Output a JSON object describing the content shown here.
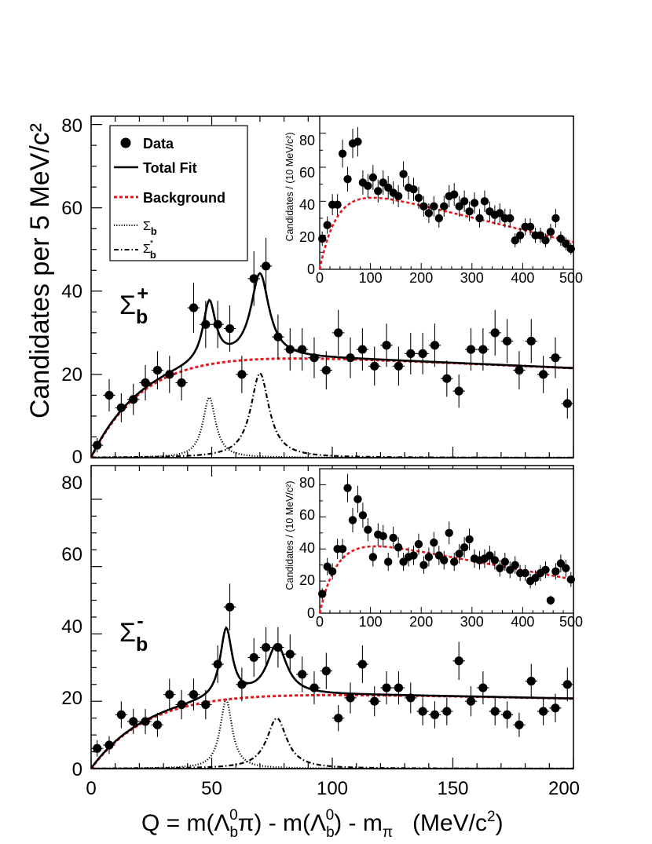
{
  "figure": {
    "ylabel": "Candidates per 5 MeV/c²",
    "xlabel": {
      "q": "Q = m(Λ",
      "b": "b",
      "zero": "0",
      "pi_close": "π) - m(Λ",
      "close": ") - m",
      "pi_sub": "π",
      "units": "   (MeV/c",
      "two": "2",
      "end": ")"
    },
    "xticks": [
      "0",
      "50",
      "100",
      "150",
      "200"
    ],
    "xlim": [
      0,
      200
    ]
  },
  "legend": {
    "data": "Data",
    "total_fit": "Total Fit",
    "background": "Background",
    "sigma": "Σ",
    "sub_b": "b",
    "star": "*"
  },
  "colors": {
    "background_curve": "#e8161b",
    "data": "#000000",
    "axis": "#000000"
  },
  "chart_data": [
    {
      "type": "scatter",
      "panel": "Sigma_b plus",
      "label": {
        "sigma": "Σ",
        "sub": "b",
        "sup": "+"
      },
      "yticks": [
        "0",
        "20",
        "40",
        "60",
        "80"
      ],
      "xlim": [
        0,
        200
      ],
      "ylim": [
        0,
        82
      ],
      "bin_width": 5,
      "series": [
        {
          "name": "Data",
          "style": "points",
          "x": [
            2.5,
            7.5,
            12.5,
            17.5,
            22.5,
            27.5,
            32.5,
            37.5,
            42.5,
            47.5,
            52.5,
            57.5,
            62.5,
            67.5,
            72.5,
            77.5,
            82.5,
            87.5,
            92.5,
            97.5,
            102.5,
            107.5,
            112.5,
            117.5,
            122.5,
            127.5,
            132.5,
            137.5,
            142.5,
            147.5,
            152.5,
            157.5,
            162.5,
            167.5,
            172.5,
            177.5,
            182.5,
            187.5,
            192.5,
            197.5
          ],
          "y": [
            3,
            15,
            12,
            14,
            18,
            21,
            20,
            18,
            36,
            32,
            32,
            31,
            20,
            43,
            46,
            29,
            26,
            26,
            24,
            21,
            30,
            24,
            26,
            22,
            27,
            22,
            25,
            25,
            27,
            19,
            16,
            26,
            26,
            30,
            28,
            21,
            28,
            20,
            24,
            13
          ]
        },
        {
          "name": "Total Fit",
          "style": "solid"
        },
        {
          "name": "Background",
          "style": "red-dashed"
        },
        {
          "name": "Σb",
          "style": "dotted",
          "peak_x": 49,
          "peak_y": 14.5
        },
        {
          "name": "Σb*",
          "style": "dash-dot",
          "peak_x": 70,
          "peak_y": 20.3
        }
      ],
      "inset": {
        "ylabel": "Candidates / (10 MeV/c²)",
        "xticks": [
          "0",
          "100",
          "200",
          "300",
          "400",
          "500"
        ],
        "yticks": [
          "0",
          "20",
          "40",
          "60",
          "80"
        ],
        "xlim": [
          0,
          500
        ],
        "ylim": [
          0,
          90
        ],
        "x": [
          5,
          15,
          25,
          35,
          45,
          55,
          65,
          75,
          85,
          95,
          105,
          115,
          125,
          135,
          145,
          155,
          165,
          175,
          185,
          195,
          205,
          215,
          225,
          235,
          245,
          255,
          265,
          275,
          285,
          295,
          305,
          315,
          325,
          335,
          345,
          355,
          365,
          375,
          385,
          395,
          405,
          415,
          425,
          435,
          445,
          455,
          465,
          475,
          485,
          495
        ],
        "y": [
          18,
          26,
          38,
          38,
          68,
          53,
          74,
          75,
          51,
          49,
          54,
          46,
          51,
          48,
          45,
          43,
          56,
          48,
          47,
          42,
          37,
          33,
          37,
          30,
          37,
          43,
          44,
          37,
          40,
          34,
          39,
          30,
          40,
          34,
          32,
          33,
          30,
          30,
          17,
          20,
          25,
          25,
          20,
          20,
          17,
          22,
          30,
          18,
          15,
          12
        ]
      }
    },
    {
      "type": "scatter",
      "panel": "Sigma_b minus",
      "label": {
        "sigma": "Σ",
        "sub": "b",
        "sup": "-"
      },
      "yticks": [
        "0",
        "20",
        "40",
        "60",
        "80"
      ],
      "xlim": [
        0,
        200
      ],
      "ylim": [
        0,
        90
      ],
      "bin_width": 5,
      "series": [
        {
          "name": "Data",
          "style": "points",
          "x": [
            2.5,
            7.5,
            12.5,
            17.5,
            22.5,
            27.5,
            32.5,
            37.5,
            42.5,
            47.5,
            52.5,
            57.5,
            62.5,
            67.5,
            72.5,
            77.5,
            82.5,
            87.5,
            92.5,
            97.5,
            102.5,
            107.5,
            112.5,
            117.5,
            122.5,
            127.5,
            132.5,
            137.5,
            142.5,
            147.5,
            152.5,
            157.5,
            162.5,
            167.5,
            172.5,
            177.5,
            182.5,
            187.5,
            192.5,
            197.5
          ],
          "y": [
            6,
            7,
            16,
            14,
            14,
            13,
            22,
            19,
            22,
            19,
            31,
            48,
            25,
            33,
            36,
            36,
            34,
            28,
            24,
            29,
            15,
            21,
            31,
            20,
            24,
            24,
            21,
            17,
            16,
            17,
            32,
            20,
            24,
            17,
            16,
            13,
            26,
            17,
            18,
            25
          ]
        },
        {
          "name": "Total Fit",
          "style": "solid"
        },
        {
          "name": "Background",
          "style": "red-dashed"
        },
        {
          "name": "Σb",
          "style": "dotted",
          "peak_x": 56,
          "peak_y": 20.5
        },
        {
          "name": "Σb*",
          "style": "dash-dot",
          "peak_x": 77,
          "peak_y": 15
        }
      ],
      "inset": {
        "ylabel": "Candidates / (10 MeV/c²)",
        "xticks": [
          "0",
          "100",
          "200",
          "300",
          "400",
          "500"
        ],
        "yticks": [
          "0",
          "20",
          "40",
          "60",
          "80"
        ],
        "xlim": [
          0,
          500
        ],
        "ylim": [
          0,
          90
        ],
        "x": [
          5,
          15,
          25,
          35,
          45,
          55,
          65,
          75,
          85,
          95,
          105,
          115,
          125,
          135,
          145,
          155,
          165,
          175,
          185,
          195,
          205,
          215,
          225,
          235,
          245,
          255,
          265,
          275,
          285,
          295,
          305,
          315,
          325,
          335,
          345,
          355,
          365,
          375,
          385,
          395,
          405,
          415,
          425,
          435,
          445,
          455,
          465,
          475,
          485,
          495
        ],
        "y": [
          12,
          29,
          26,
          40,
          40,
          78,
          58,
          71,
          61,
          52,
          35,
          49,
          48,
          32,
          47,
          41,
          32,
          35,
          36,
          43,
          30,
          35,
          44,
          36,
          33,
          50,
          32,
          37,
          41,
          46,
          34,
          33,
          34,
          36,
          33,
          28,
          32,
          27,
          30,
          25,
          25,
          20,
          22,
          25,
          27,
          8,
          26,
          31,
          28,
          21
        ]
      }
    }
  ]
}
